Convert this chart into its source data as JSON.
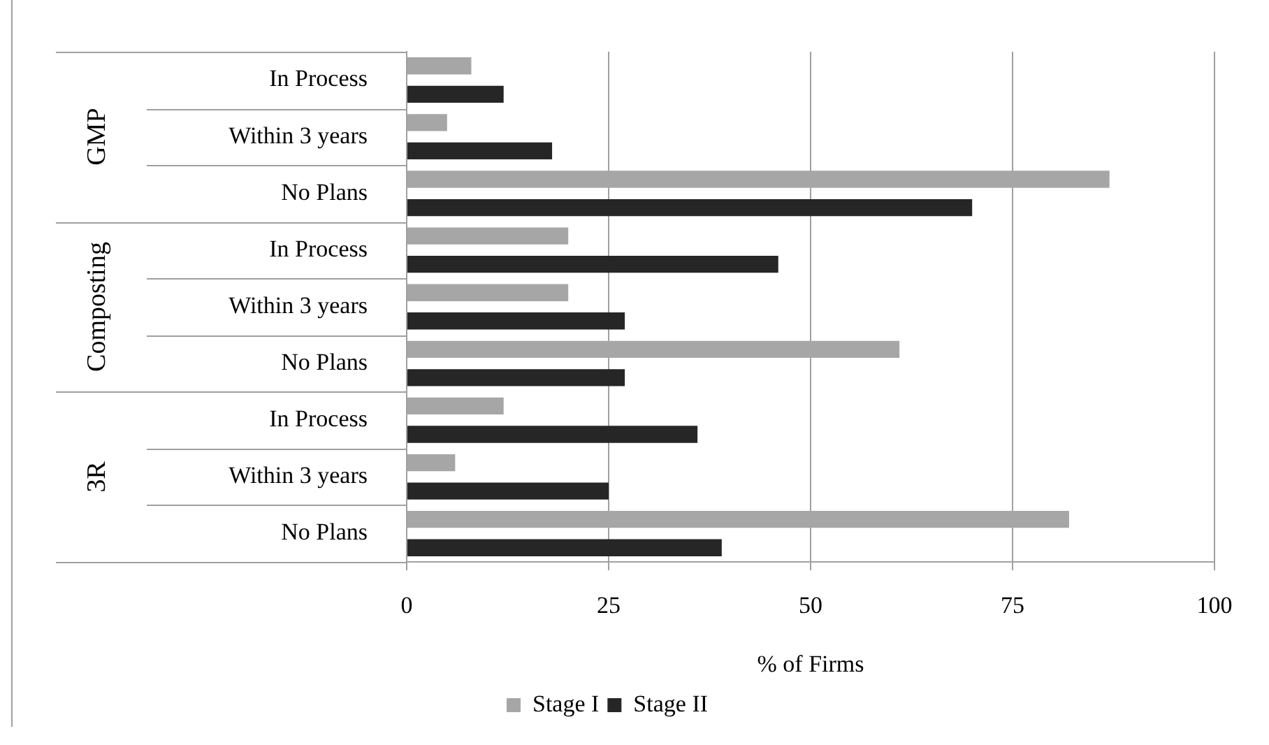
{
  "chart_data": {
    "type": "bar",
    "orientation": "horizontal",
    "xlabel": "% of Firms",
    "categories": [
      "In Process",
      "Within 3 years",
      "No Plans",
      "In Process",
      "Within 3 years",
      "No Plans",
      "In Process",
      "Within 3 years",
      "No Plans"
    ],
    "annotations": [
      "GMP",
      "Composting",
      "3R"
    ],
    "series": [
      {
        "name": "Stage I",
        "color": "#a6a6a6",
        "values": [
          8,
          5,
          87,
          20,
          20,
          61,
          12,
          6,
          82
        ]
      },
      {
        "name": "Stage II",
        "color": "#262626",
        "values": [
          12,
          18,
          70,
          46,
          27,
          27,
          36,
          25,
          39
        ]
      }
    ],
    "xlim": [
      0,
      100
    ],
    "xticks": [
      0,
      25,
      50,
      75,
      100
    ],
    "grid": "x",
    "legend": "bottom"
  }
}
